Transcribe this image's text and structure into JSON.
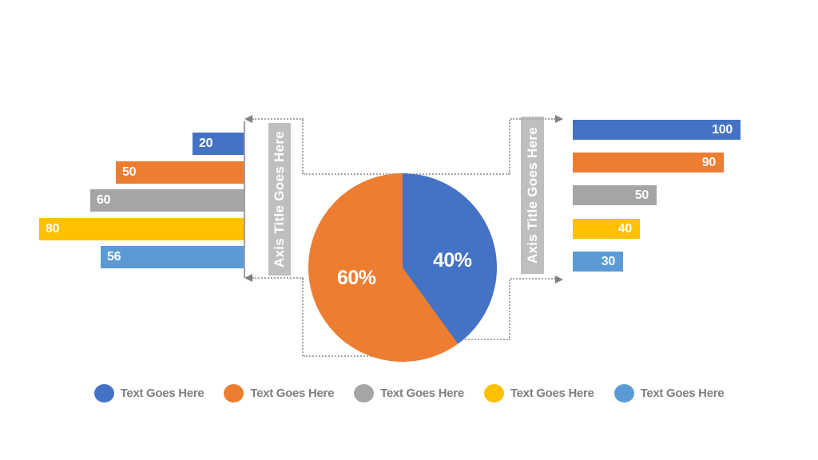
{
  "chart_data": [
    {
      "type": "bar",
      "name": "left-bar-chart",
      "orientation": "horizontal",
      "bars_grow": "leftward-from-right-axis",
      "axis_title": "Axis Title Goes Here",
      "categories": [
        "Text Goes Here",
        "Text Goes Here",
        "Text Goes Here",
        "Text Goes Here",
        "Text Goes Here"
      ],
      "values": [
        20,
        50,
        60,
        80,
        56
      ],
      "colors": [
        "#4472C4",
        "#ED7D31",
        "#A5A5A5",
        "#FFC000",
        "#5B9BD5"
      ],
      "xlim": [
        0,
        80
      ],
      "grid": false,
      "data_labels": "inside-end white bold"
    },
    {
      "type": "pie",
      "name": "center-pie-chart",
      "values": [
        40,
        60
      ],
      "labels": [
        "40%",
        "60%"
      ],
      "colors": [
        "#4472C4",
        "#ED7D31"
      ],
      "start_angle_deg": 0,
      "direction": "clockwise",
      "data_labels": "inside white bold"
    },
    {
      "type": "bar",
      "name": "right-bar-chart",
      "orientation": "horizontal",
      "bars_grow": "rightward-from-left-edge",
      "axis_title": "Axis Title Goes Here",
      "categories": [
        "Text Goes Here",
        "Text Goes Here",
        "Text Goes Here",
        "Text Goes Here",
        "Text Goes Here"
      ],
      "values": [
        100,
        90,
        50,
        40,
        30
      ],
      "colors": [
        "#4472C4",
        "#ED7D31",
        "#A5A5A5",
        "#FFC000",
        "#5B9BD5"
      ],
      "xlim": [
        0,
        100
      ],
      "grid": false,
      "data_labels": "inside-end white bold"
    }
  ],
  "legend": {
    "position": "bottom-center",
    "items": [
      {
        "label": "Text Goes Here",
        "color": "#4472C4"
      },
      {
        "label": "Text Goes Here",
        "color": "#ED7D31"
      },
      {
        "label": "Text Goes Here",
        "color": "#A5A5A5"
      },
      {
        "label": "Text Goes Here",
        "color": "#FFC000"
      },
      {
        "label": "Text Goes Here",
        "color": "#5B9BD5"
      }
    ]
  },
  "style": {
    "background": "#FFFFFF",
    "axis_band_color": "#BFBFBF",
    "axis_band_text_color": "#FFFFFF",
    "axis_line_color": "#A0A0A0",
    "connector_dot_color": "#A6A6A6",
    "arrow_color": "#808080",
    "legend_text_color": "#7F7F7F"
  }
}
